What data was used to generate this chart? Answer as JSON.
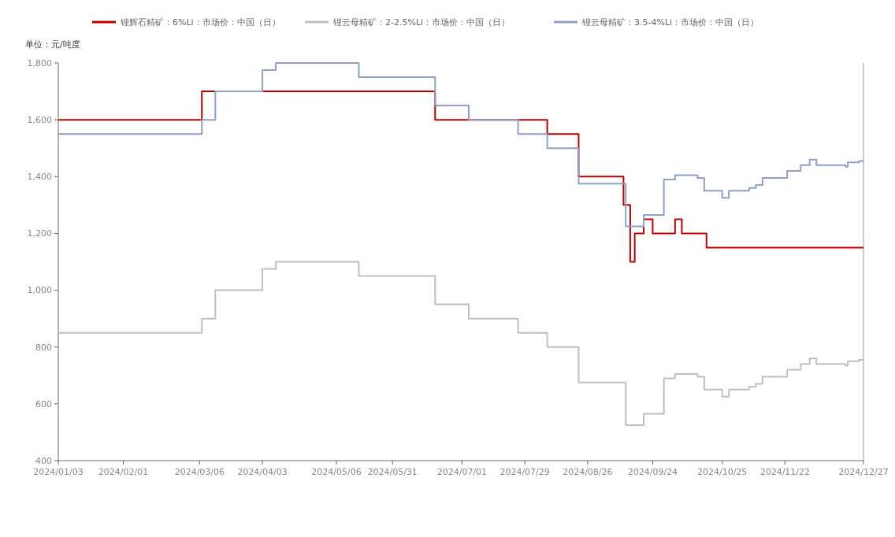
{
  "chart_data": {
    "type": "step",
    "ylabel": "单位：元/吨度",
    "legend": "top",
    "grid": false,
    "xlim": [
      "2024-01-03",
      "2024-12-27"
    ],
    "xticks": [
      {
        "value": "2024-01-03",
        "label": "2024/01/03"
      },
      {
        "value": "2024-02-01",
        "label": "2024/02/01"
      },
      {
        "value": "2024-03-06",
        "label": "2024/03/06"
      },
      {
        "value": "2024-04-03",
        "label": "2024/04/03"
      },
      {
        "value": "2024-05-06",
        "label": "2024/05/06"
      },
      {
        "value": "2024-05-31",
        "label": "2024/05/31"
      },
      {
        "value": "2024-07-01",
        "label": "2024/07/01"
      },
      {
        "value": "2024-07-29",
        "label": "2024/07/29"
      },
      {
        "value": "2024-08-26",
        "label": "2024/08/26"
      },
      {
        "value": "2024-09-24",
        "label": "2024/09/24"
      },
      {
        "value": "2024-10-25",
        "label": "2024/10/25"
      },
      {
        "value": "2024-11-22",
        "label": "2024/11/22"
      },
      {
        "value": "2024-12-27",
        "label": "2024/12/27"
      }
    ],
    "ylim": [
      400,
      1800
    ],
    "yticks": [
      400,
      600,
      800,
      {
        "value": 1000,
        "label": "1,000"
      },
      {
        "value": 1200,
        "label": "1,200"
      },
      {
        "value": 1400,
        "label": "1,400"
      },
      {
        "value": 1600,
        "label": "1,600"
      },
      {
        "value": 1800,
        "label": "1,800"
      }
    ],
    "series": [
      {
        "name": "锂辉石精矿：6%Li：市场价：中国（日）",
        "color": "#c00000",
        "x": [
          "2024-01-03",
          "2024-03-07",
          "2024-06-19",
          "2024-08-08",
          "2024-08-22",
          "2024-09-11",
          "2024-09-14",
          "2024-09-16",
          "2024-09-20",
          "2024-09-24",
          "2024-10-04",
          "2024-10-07",
          "2024-10-18",
          "2024-12-27"
        ],
        "values": [
          1600,
          1700,
          1600,
          1550,
          1400,
          1300,
          1100,
          1200,
          1250,
          1200,
          1250,
          1200,
          1150,
          1150
        ]
      },
      {
        "name": "锂云母精矿：2-2.5%Li：市场价：中国（日）",
        "color": "#bfbfbf",
        "x": [
          "2024-01-03",
          "2024-03-07",
          "2024-03-13",
          "2024-04-03",
          "2024-04-09",
          "2024-05-16",
          "2024-06-19",
          "2024-07-04",
          "2024-07-26",
          "2024-08-08",
          "2024-08-22",
          "2024-09-12",
          "2024-09-20",
          "2024-09-29",
          "2024-10-04",
          "2024-10-14",
          "2024-10-17",
          "2024-10-25",
          "2024-10-28",
          "2024-11-06",
          "2024-11-09",
          "2024-11-12",
          "2024-11-23",
          "2024-11-29",
          "2024-12-03",
          "2024-12-06",
          "2024-12-19",
          "2024-12-20",
          "2024-12-25",
          "2024-12-27"
        ],
        "values": [
          850,
          900,
          1000,
          1075,
          1100,
          1050,
          950,
          900,
          850,
          800,
          675,
          525,
          565,
          690,
          705,
          695,
          650,
          625,
          650,
          660,
          670,
          695,
          720,
          740,
          760,
          740,
          735,
          750,
          755,
          755
        ]
      },
      {
        "name": "锂云母精矿：3.5-4%Li：市场价：中国（日）",
        "color": "#8ea0c8",
        "x": [
          "2024-01-03",
          "2024-03-07",
          "2024-03-13",
          "2024-04-03",
          "2024-04-09",
          "2024-05-16",
          "2024-06-19",
          "2024-07-04",
          "2024-07-26",
          "2024-08-08",
          "2024-08-22",
          "2024-09-12",
          "2024-09-20",
          "2024-09-29",
          "2024-10-04",
          "2024-10-14",
          "2024-10-17",
          "2024-10-25",
          "2024-10-28",
          "2024-11-06",
          "2024-11-09",
          "2024-11-12",
          "2024-11-23",
          "2024-11-29",
          "2024-12-03",
          "2024-12-06",
          "2024-12-19",
          "2024-12-20",
          "2024-12-25",
          "2024-12-27"
        ],
        "values": [
          1550,
          1600,
          1700,
          1775,
          1800,
          1750,
          1650,
          1600,
          1550,
          1500,
          1375,
          1225,
          1265,
          1390,
          1405,
          1395,
          1350,
          1325,
          1350,
          1360,
          1370,
          1395,
          1420,
          1440,
          1460,
          1440,
          1435,
          1450,
          1455,
          1455
        ]
      }
    ]
  }
}
